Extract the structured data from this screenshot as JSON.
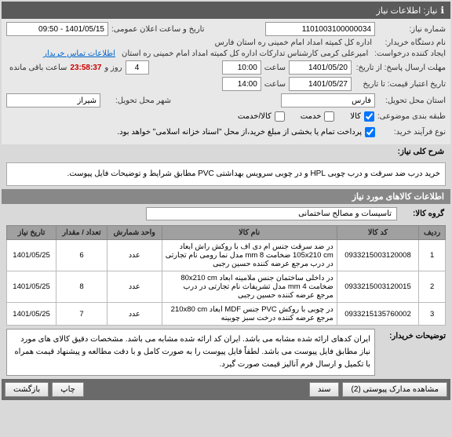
{
  "header": {
    "title": "نیاز: اطلاعات نیاز"
  },
  "form": {
    "need_no_label": "شماره نیاز:",
    "need_no": "1101003100000034",
    "announce_label": "تاریخ و ساعت اعلان عمومی:",
    "announce_value": "1401/05/15 - 09:50",
    "buyer_org_label": "نام دستگاه خریدار:",
    "buyer_org": "اداره کل کمیته امداد امام خمینی ره استان فارس",
    "creator_label": "ایجاد کننده درخواست:",
    "creator": "امیرعلی کرمی کارشناس تدارکات اداره کل کمیته امداد امام خمینی ره استان",
    "contact_link": "اطلاعات تماس خریدار",
    "deadline_resp_label": "مهلت ارسال پاسخ: از تاریخ:",
    "deadline_resp_date": "1401/05/20",
    "time_label": "ساعت",
    "deadline_resp_time": "10:00",
    "days_label": "روز و",
    "days": "4",
    "countdown": "23:58:37",
    "remain_label": "ساعت باقی مانده",
    "validity_label": "تاریخ اعتبار قیمت: تا تاریخ",
    "validity_date": "1401/05/27",
    "validity_time": "14:00",
    "province_label": "استان محل تحویل:",
    "province": "فارس",
    "city_label": "شهر محل تحویل:",
    "city": "شیراز",
    "topic_class_label": "طبقه بندی موضوعی:",
    "topic_goods": "کالا",
    "topic_service": "خدمت",
    "topic_mixed": "کالا/خدمت",
    "process_label": "نوع فرآیند خرید:",
    "process_note": "پرداخت تمام یا بخشی از مبلغ خرید،از محل \"اسناد خزانه اسلامی\" خواهد بود."
  },
  "desc": {
    "section_title": "شرح کلی نیاز:",
    "text": "خرید درب ضد سرقت و درب چوبی HPL و در چوبی سرویس بهداشتی PVC مطابق شرایط و توضیحات فایل پیوست."
  },
  "items_header": "اطلاعات کالاهای مورد نیاز",
  "group": {
    "label": "گروه کالا:",
    "value": "تاسیسات و مصالح ساختمانی"
  },
  "table": {
    "cols": [
      "ردیف",
      "کد کالا",
      "نام کالا",
      "واحد شمارش",
      "تعداد / مقدار",
      "تاریخ نیاز"
    ],
    "rows": [
      {
        "n": "1",
        "code": "0933215003120008",
        "name": "در ضد سرقت جنس ام دی اف با روکش راش ابعاد 105x210 cm ضخامت 8 mm مدل نما رومی نام تجارتی در درب مرجع عرضه کننده حسین رجبی",
        "unit": "عدد",
        "qty": "6",
        "date": "1401/05/25"
      },
      {
        "n": "2",
        "code": "0933215003120015",
        "name": "در داخلی ساختمان جنس ملامینه ابعاد 80x210 cm ضخامت 4 mm مدل تشریفات نام تجارتی در درب مرجع عرضه کننده حسین رجبی",
        "unit": "عدد",
        "qty": "8",
        "date": "1401/05/25"
      },
      {
        "n": "3",
        "code": "0933215135760002",
        "name": "در چوبی با روکش PVC جنس MDF ابعاد 210x80 cm مرجع عرضه کننده درخت سبز چوبینه",
        "unit": "عدد",
        "qty": "7",
        "date": "1401/05/25"
      }
    ]
  },
  "buyer_note": {
    "label": "توضیحات خریدار:",
    "text": "ایران کدهای ارائه شده مشابه می باشد. ایران کد ارائه شده مشابه می باشد. مشخصات دقیق کالای های مورد نیاز مطابق فایل پیوست می باشد. لطفاً فایل پیوست را به صورت کامل و با دقت مطالعه و پیشنهاد قیمت همراه با تکمیل و ارسال فرم آنالیز قیمت صورت گیرد."
  },
  "footer": {
    "attachments": "مشاهده مدارک پیوستی (2)",
    "doc": "سند",
    "print": "چاپ",
    "back": "بازگشت"
  }
}
